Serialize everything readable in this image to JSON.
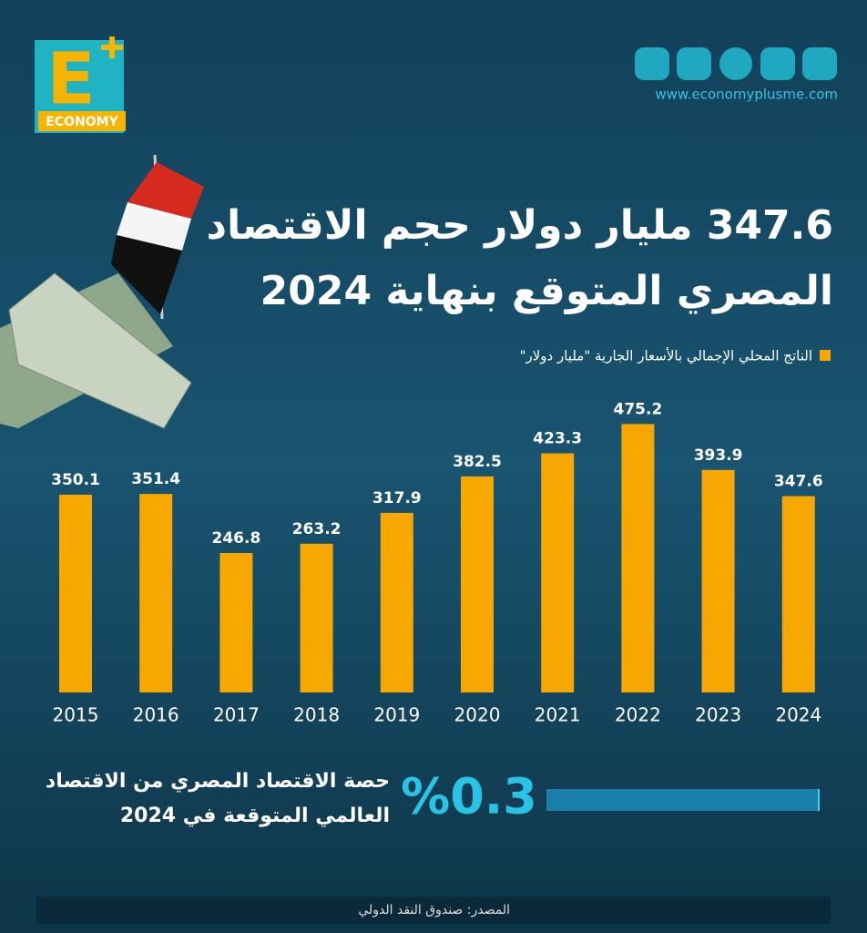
{
  "logo": {
    "letter": "E",
    "word": "ECONOMY"
  },
  "website": "www.economyplusme.com",
  "chart_data": {
    "type": "bar",
    "title_lines": [
      "347.6 مليار دولار حجم الاقتصاد",
      "المصري المتوقع بنهاية 2024"
    ],
    "legend": "الناتج المحلي الإجمالي بالأسعار الجارية \"مليار دولار\"",
    "categories": [
      "2015",
      "2016",
      "2017",
      "2018",
      "2019",
      "2020",
      "2021",
      "2022",
      "2023",
      "2024"
    ],
    "values": [
      350.1,
      351.4,
      246.8,
      263.2,
      317.9,
      382.5,
      423.3,
      475.2,
      393.9,
      347.6
    ],
    "color": "#f6a800"
  },
  "world_share": {
    "value": 0.3,
    "label": "%0.3",
    "text_lines": [
      "حصة الاقتصاد المصري من الاقتصاد",
      "العالمي المتوقعة في 2024"
    ]
  },
  "source": "المصدر: صندوق النقد الدولي"
}
